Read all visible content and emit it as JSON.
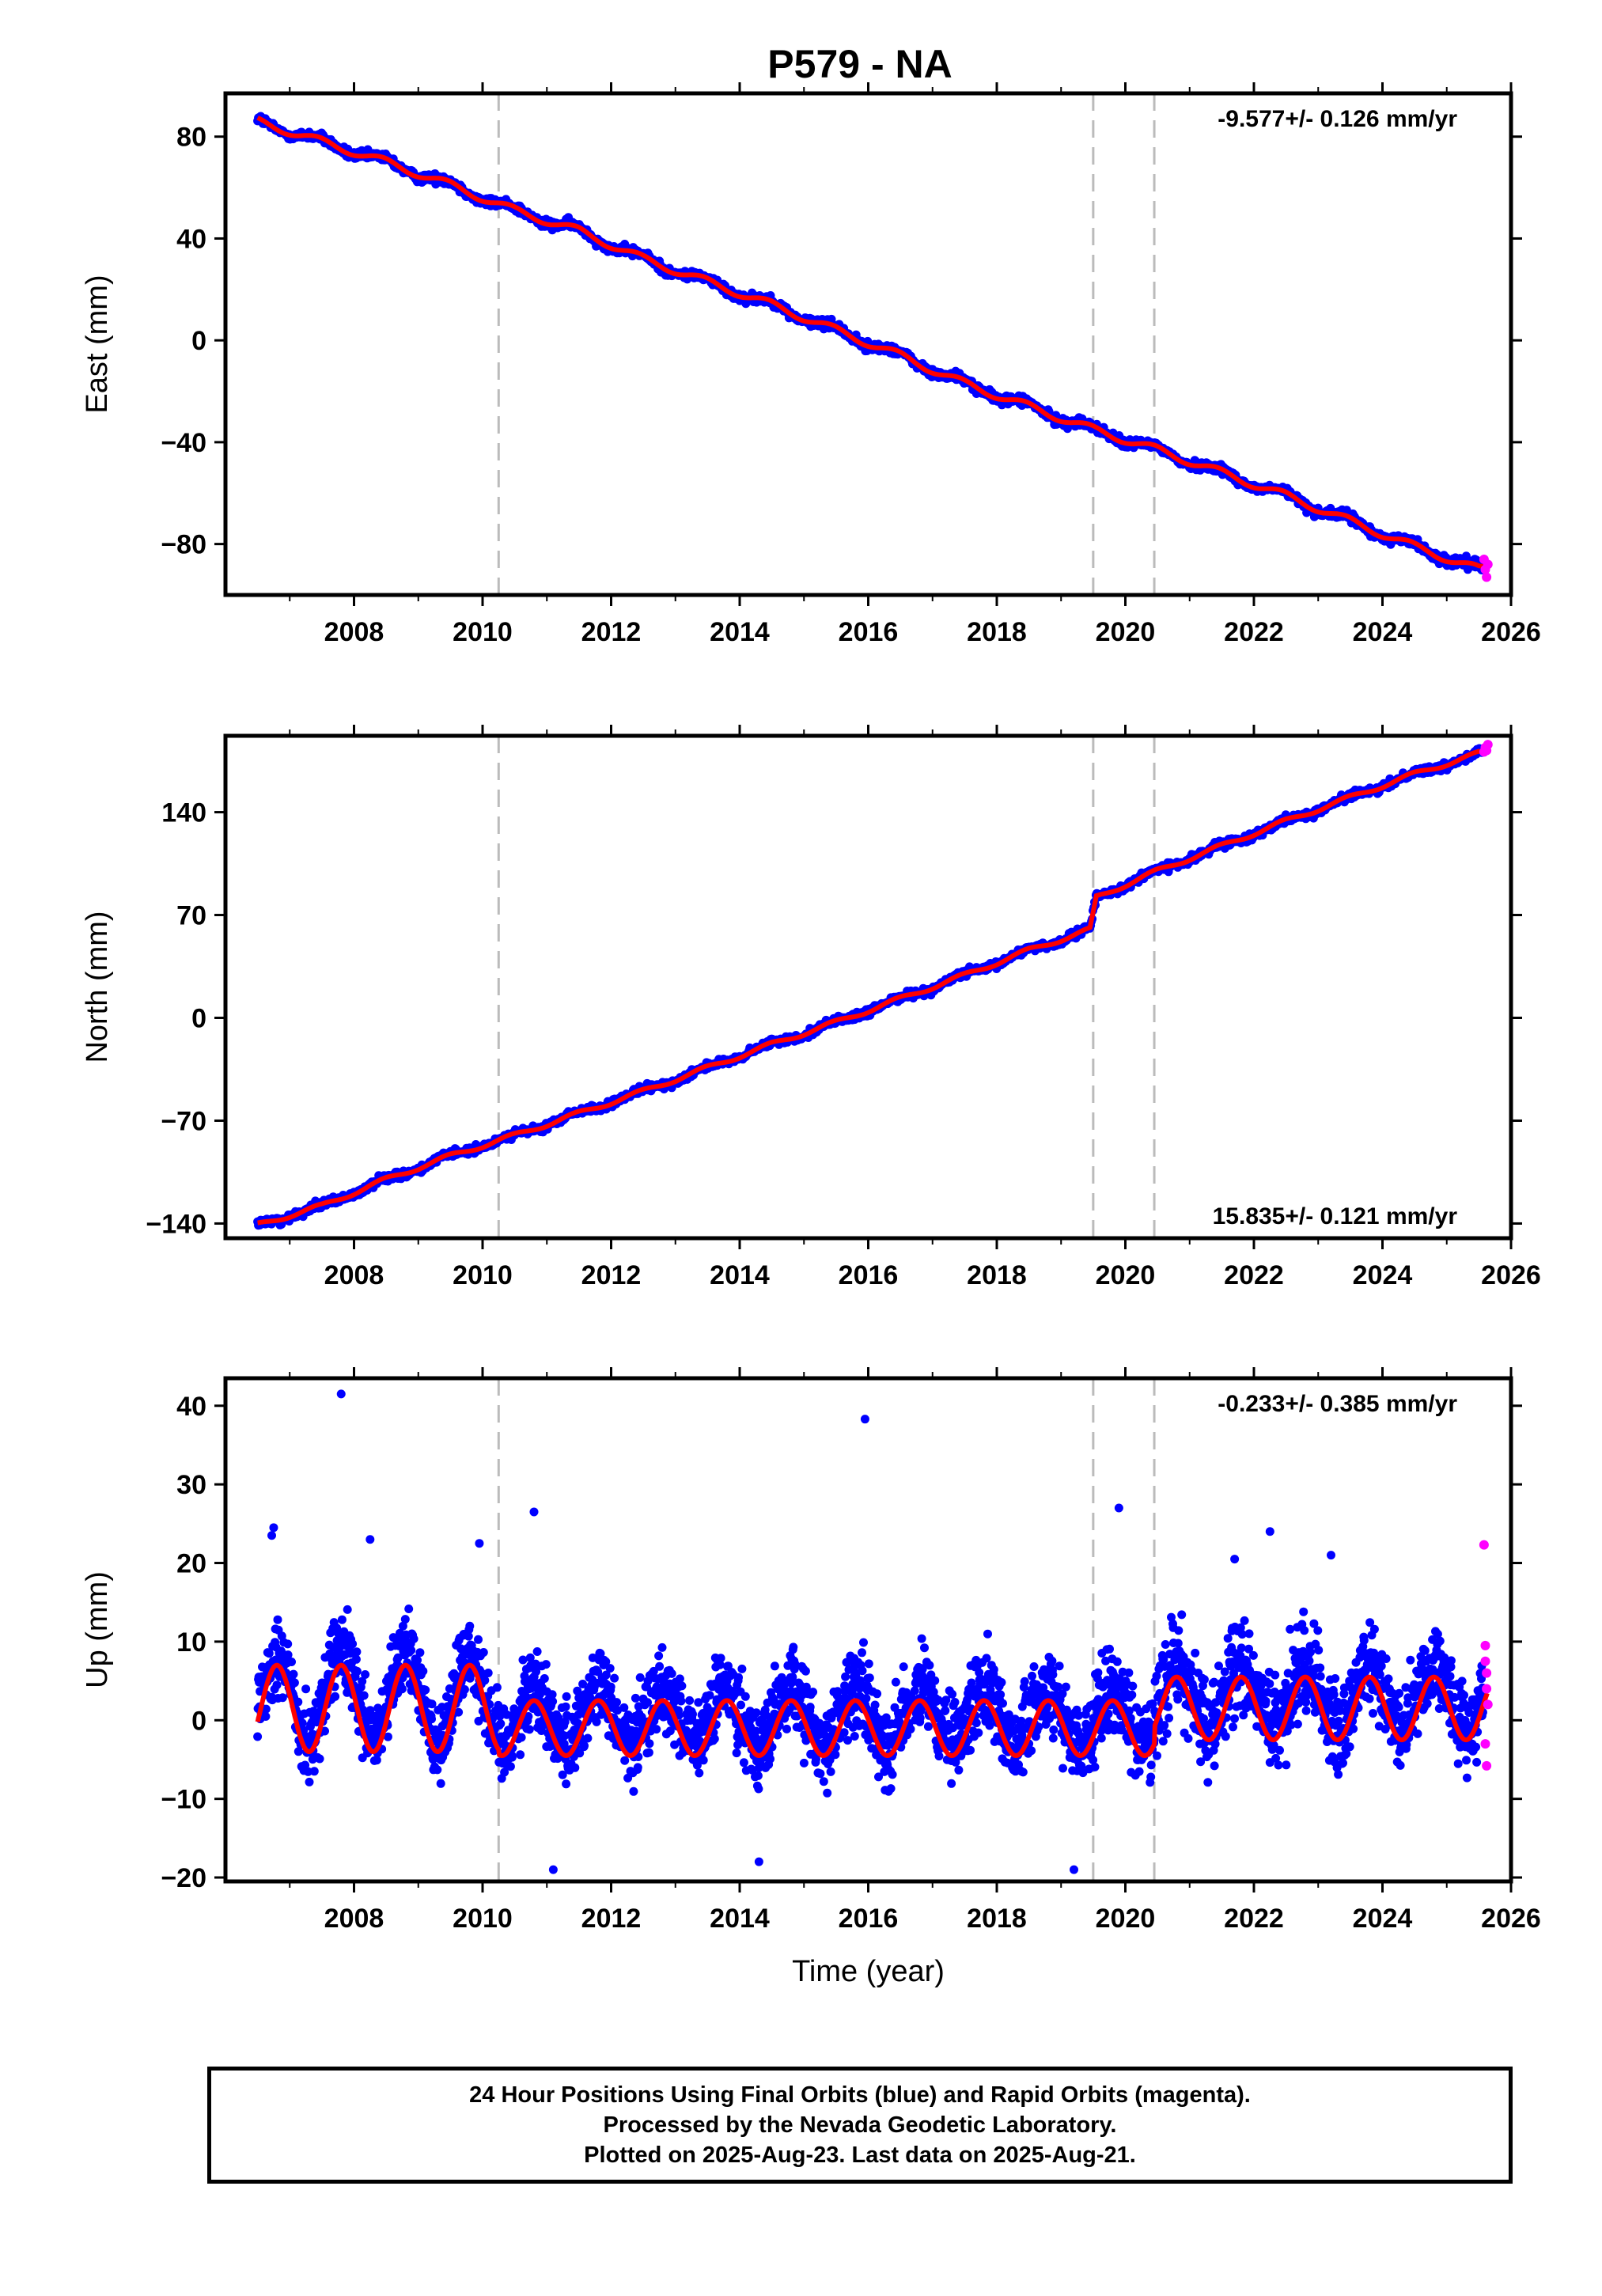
{
  "title": "P579 - NA",
  "footer": {
    "lines": [
      "24 Hour Positions Using Final Orbits (blue) and Rapid Orbits (magenta).",
      "Processed by the Nevada Geodetic Laboratory.",
      "Plotted on 2025-Aug-23. Last data on 2025-Aug-21."
    ]
  },
  "colors": {
    "final_orbits": "#0000ff",
    "rapid_orbits": "#ff00ff",
    "model_fit": "#ff0000",
    "event_lines": "#bbbbbb"
  },
  "chart_data": [
    {
      "type": "scatter",
      "panel": "east",
      "ylabel": "East (mm)",
      "xlabel": "",
      "xlim": [
        2006.0,
        2026.0
      ],
      "ylim": [
        -100,
        97
      ],
      "xticks": [
        2008,
        2010,
        2012,
        2014,
        2016,
        2018,
        2020,
        2022,
        2024,
        2026
      ],
      "yticks": [
        80,
        40,
        0,
        -40,
        -80
      ],
      "event_lines": [
        2010.25,
        2019.5,
        2020.45
      ],
      "rate_label": "-9.577+/- 0.126 mm/yr",
      "rate_position": "top-right",
      "data_span": [
        2006.5,
        2025.64
      ],
      "series": [
        {
          "name": "Final Orbits (blue)",
          "color": "#0000ff",
          "x": [
            2006.5,
            2007.5,
            2008.5,
            2009.5,
            2010.5,
            2011.5,
            2012.5,
            2013.5,
            2014.5,
            2015.5,
            2016.5,
            2017.5,
            2018.5,
            2019.5,
            2020.5,
            2021.5,
            2022.5,
            2023.5,
            2024.5,
            2025.5
          ],
          "y": [
            86,
            78,
            70,
            61,
            51,
            43,
            32,
            23,
            14,
            4,
            -6,
            -17,
            -26,
            -35,
            -43,
            -52,
            -61,
            -71,
            -81,
            -90
          ]
        },
        {
          "name": "Rapid Orbits (magenta)",
          "color": "#ff00ff",
          "x": [
            2025.58,
            2025.6,
            2025.62,
            2025.64
          ],
          "y": [
            -86,
            -90,
            -93,
            -88
          ]
        }
      ]
    },
    {
      "type": "scatter",
      "panel": "north",
      "ylabel": "North (mm)",
      "xlabel": "",
      "xlim": [
        2006.0,
        2026.0
      ],
      "ylim": [
        -150,
        192
      ],
      "xticks": [
        2008,
        2010,
        2012,
        2014,
        2016,
        2018,
        2020,
        2022,
        2024,
        2026
      ],
      "yticks": [
        140,
        70,
        0,
        -70,
        -140
      ],
      "event_lines": [
        2010.25,
        2019.5,
        2020.45
      ],
      "rate_label": "15.835+/- 0.121 mm/yr",
      "rate_position": "bottom-right",
      "data_span": [
        2006.5,
        2025.64
      ],
      "series": [
        {
          "name": "Final Orbits (blue)",
          "color": "#0000ff",
          "x": [
            2006.5,
            2007.5,
            2008.5,
            2009.5,
            2010.5,
            2011.5,
            2012.5,
            2013.5,
            2014.5,
            2015.5,
            2016.5,
            2017.5,
            2018.5,
            2019.45,
            2019.55,
            2020.5,
            2021.5,
            2022.5,
            2023.5,
            2024.5,
            2025.5
          ],
          "y": [
            -141,
            -128,
            -110,
            -94,
            -80,
            -65,
            -50,
            -34,
            -18,
            -3,
            13,
            29,
            46,
            60,
            82,
            100,
            117,
            134,
            150,
            166,
            180
          ]
        },
        {
          "name": "Rapid Orbits (magenta)",
          "color": "#ff00ff",
          "x": [
            2025.58,
            2025.6,
            2025.62,
            2025.64
          ],
          "y": [
            181,
            184,
            182,
            186
          ]
        }
      ]
    },
    {
      "type": "scatter",
      "panel": "up",
      "ylabel": "Up (mm)",
      "xlabel": "Time (year)",
      "xlim": [
        2006.0,
        2026.0
      ],
      "ylim": [
        -20.5,
        43.5
      ],
      "xticks": [
        2008,
        2010,
        2012,
        2014,
        2016,
        2018,
        2020,
        2022,
        2024,
        2026
      ],
      "yticks": [
        40,
        30,
        20,
        10,
        0,
        -10,
        -20
      ],
      "event_lines": [
        2010.25,
        2019.5,
        2020.45
      ],
      "rate_label": "-0.233+/- 0.385 mm/yr",
      "rate_position": "top-right",
      "data_span": [
        2006.5,
        2025.64
      ],
      "seasonal_amplitude_mm": [
        5.5,
        3.5,
        4.0
      ],
      "series": [
        {
          "name": "Final Orbits (blue)",
          "color": "#0000ff",
          "outliers_x": [
            2007.8,
            2006.75,
            2006.72,
            2008.25,
            2009.95,
            2010.8,
            2015.95,
            2019.9,
            2022.25,
            2023.2,
            2021.7,
            2014.3,
            2019.2,
            2011.1
          ],
          "outliers_y": [
            41.5,
            24.5,
            23.5,
            23,
            22.5,
            26.5,
            38.3,
            27,
            24,
            21,
            20.5,
            -18,
            -19,
            -19
          ]
        },
        {
          "name": "Rapid Orbits (magenta)",
          "color": "#ff00ff",
          "x": [
            2025.58,
            2025.6,
            2025.6,
            2025.62,
            2025.62,
            2025.64,
            2025.6,
            2025.62
          ],
          "y": [
            22.3,
            9.5,
            7.5,
            6,
            4,
            2,
            -3,
            -5.8
          ]
        }
      ]
    }
  ]
}
